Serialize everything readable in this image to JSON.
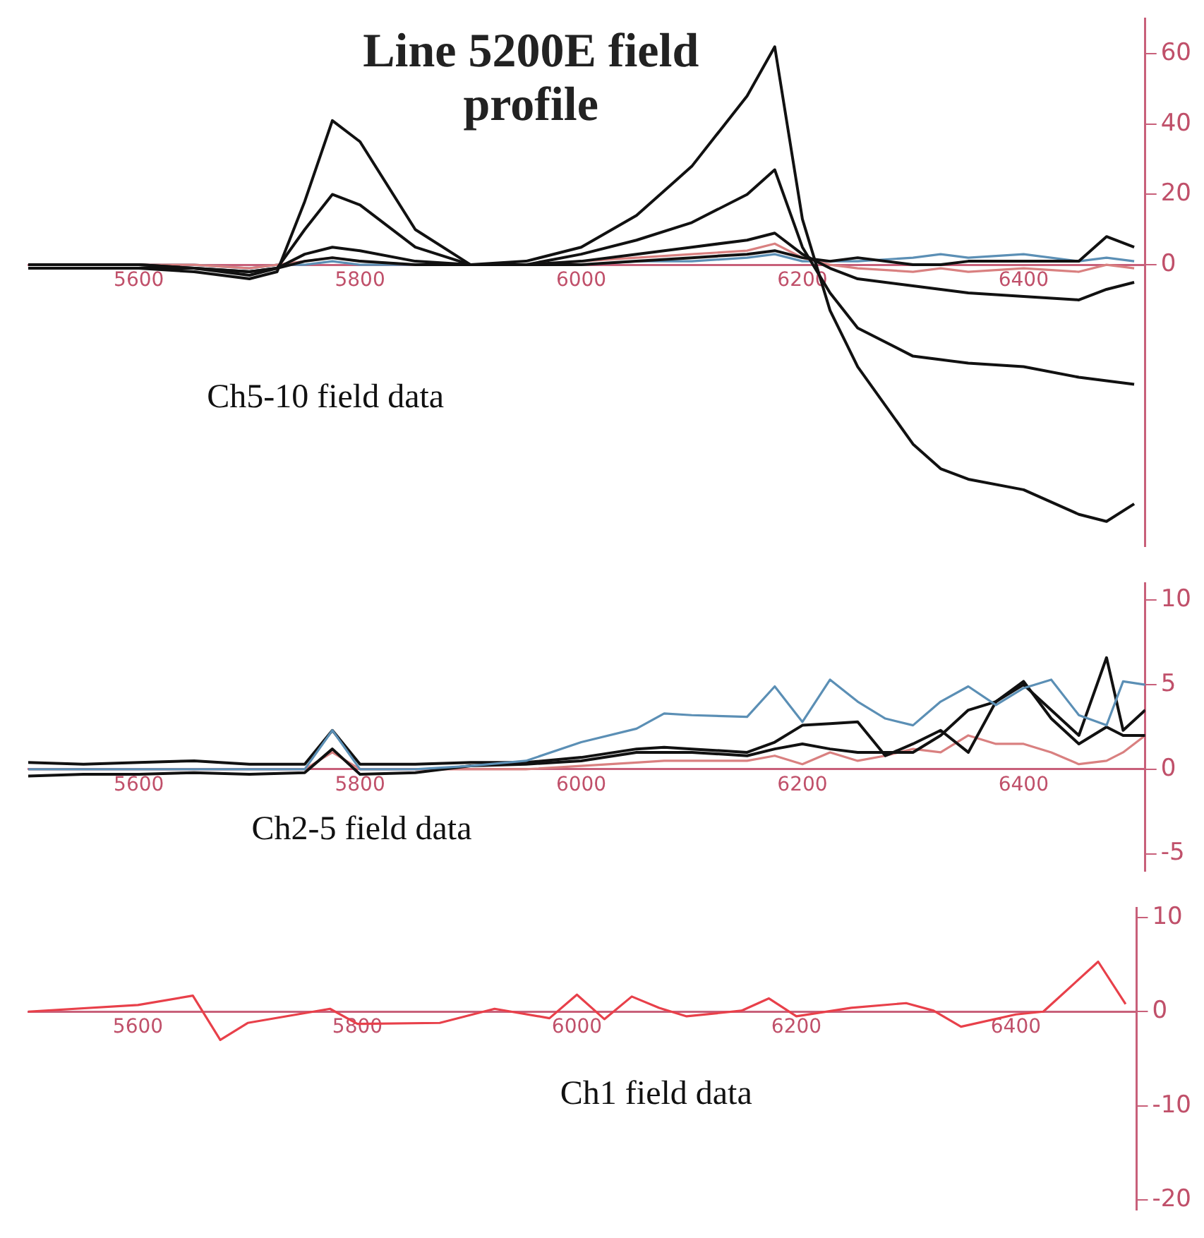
{
  "chart_data": [
    {
      "type": "line",
      "title": "Line 5200E field profile",
      "annotations": [
        "Ch5-10 field data"
      ],
      "grid": false,
      "legend": false,
      "marker": "none",
      "line_style": "solid",
      "x": [
        5500,
        5550,
        5600,
        5650,
        5700,
        5725,
        5750,
        5775,
        5800,
        5850,
        5900,
        5950,
        6000,
        6050,
        6100,
        6150,
        6175,
        6200,
        6225,
        6250,
        6300,
        6325,
        6350,
        6400,
        6450,
        6475,
        6500
      ],
      "xlim": [
        5500,
        6510
      ],
      "xticks": [
        5600,
        5800,
        6000,
        6200,
        6400
      ],
      "ylim": [
        -80,
        70
      ],
      "yticks": [
        0,
        20,
        40,
        60
      ],
      "series": [
        {
          "color": "#111111",
          "values": [
            -1,
            -1,
            -1,
            -2,
            -4,
            -2,
            18,
            41,
            35,
            10,
            0,
            1,
            5,
            14,
            28,
            48,
            62,
            13,
            -13,
            -29,
            -51,
            -58,
            -61,
            -64,
            -71,
            -73,
            -68
          ]
        },
        {
          "color": "#111111",
          "values": [
            -1,
            -1,
            -1,
            -1,
            -3,
            -1,
            10,
            20,
            17,
            5,
            0,
            0,
            3,
            7,
            12,
            20,
            27,
            5,
            -8,
            -18,
            -26,
            -27,
            -28,
            -29,
            -32,
            -33,
            -34
          ]
        },
        {
          "color": "#111111",
          "values": [
            0,
            0,
            0,
            -1,
            -2,
            -1,
            3,
            5,
            4,
            1,
            0,
            0,
            1,
            3,
            5,
            7,
            9,
            3,
            -1,
            -4,
            -6,
            -7,
            -8,
            -9,
            -10,
            -7,
            -5
          ]
        },
        {
          "color": "#111111",
          "values": [
            0,
            0,
            0,
            -1,
            -2,
            -1,
            1,
            2,
            1,
            0,
            0,
            0,
            0,
            1,
            2,
            3,
            4,
            2,
            1,
            2,
            0,
            0,
            1,
            1,
            1,
            8,
            5
          ]
        },
        {
          "color": "#d98080",
          "values": [
            0,
            0,
            0,
            0,
            -1,
            0,
            1,
            2,
            1,
            0,
            0,
            0,
            1,
            2,
            3,
            4,
            6,
            2,
            0,
            -1,
            -2,
            -1,
            -2,
            -1,
            -2,
            0,
            -1
          ]
        },
        {
          "color": "#5b8fb5",
          "values": [
            0,
            0,
            0,
            0,
            -1,
            0,
            0,
            1,
            0,
            0,
            0,
            0,
            0,
            1,
            1,
            2,
            3,
            1,
            1,
            1,
            2,
            3,
            2,
            3,
            1,
            2,
            1
          ]
        }
      ]
    },
    {
      "type": "line",
      "annotations": [
        "Ch2-5 field data"
      ],
      "grid": false,
      "legend": false,
      "marker": "none",
      "line_style": "solid",
      "x": [
        5500,
        5550,
        5600,
        5650,
        5700,
        5750,
        5775,
        5800,
        5850,
        5900,
        5950,
        6000,
        6050,
        6075,
        6100,
        6150,
        6175,
        6200,
        6225,
        6250,
        6275,
        6300,
        6325,
        6350,
        6375,
        6400,
        6425,
        6450,
        6475,
        6490,
        6510
      ],
      "xlim": [
        5500,
        6510
      ],
      "xticks": [
        5600,
        5800,
        6000,
        6200,
        6400
      ],
      "ylim": [
        -6,
        11
      ],
      "yticks": [
        -5,
        0,
        5,
        10
      ],
      "series": [
        {
          "color": "#5b8fb5",
          "values": [
            0,
            0,
            0,
            0,
            0,
            0,
            2.3,
            0,
            0,
            0.2,
            0.5,
            1.6,
            2.4,
            3.3,
            3.2,
            3.1,
            4.9,
            2.8,
            5.3,
            4.0,
            3.0,
            2.6,
            4.0,
            4.9,
            3.8,
            4.8,
            5.3,
            3.2,
            2.6,
            5.2,
            5.0
          ]
        },
        {
          "color": "#111111",
          "values": [
            0.4,
            0.3,
            0.4,
            0.5,
            0.3,
            0.3,
            2.3,
            0.3,
            0.3,
            0.4,
            0.4,
            0.7,
            1.2,
            1.3,
            1.2,
            1.0,
            1.6,
            2.6,
            2.7,
            2.8,
            0.8,
            1.5,
            2.3,
            1.0,
            4.0,
            5.0,
            3.5,
            2.0,
            6.6,
            2.3,
            3.5
          ]
        },
        {
          "color": "#111111",
          "values": [
            -0.4,
            -0.3,
            -0.3,
            -0.2,
            -0.3,
            -0.2,
            1.2,
            -0.3,
            -0.2,
            0.2,
            0.3,
            0.5,
            1.0,
            1.0,
            1.0,
            0.8,
            1.2,
            1.5,
            1.2,
            1.0,
            1.0,
            1.0,
            2.0,
            3.5,
            4.0,
            5.2,
            3.0,
            1.5,
            2.5,
            2.0,
            2.0
          ]
        },
        {
          "color": "#d98080",
          "values": [
            0,
            0,
            0,
            0,
            0,
            0,
            1.0,
            0,
            0,
            0,
            0,
            0.2,
            0.4,
            0.5,
            0.5,
            0.5,
            0.8,
            0.3,
            1.0,
            0.5,
            0.8,
            1.2,
            1.0,
            2.0,
            1.5,
            1.5,
            1.0,
            0.3,
            0.5,
            1.0,
            2.0
          ]
        }
      ]
    },
    {
      "type": "line",
      "annotations": [
        "Ch1 field data"
      ],
      "grid": false,
      "legend": false,
      "marker": "none",
      "line_style": "solid",
      "x": [
        5500,
        5600,
        5650,
        5675,
        5700,
        5775,
        5800,
        5875,
        5925,
        5975,
        6000,
        6025,
        6050,
        6075,
        6100,
        6150,
        6175,
        6200,
        6250,
        6300,
        6325,
        6350,
        6400,
        6425,
        6475,
        6500
      ],
      "xlim": [
        5500,
        6510
      ],
      "xticks": [
        5600,
        5800,
        6000,
        6200,
        6400
      ],
      "ylim": [
        -21,
        11
      ],
      "yticks": [
        -20,
        -10,
        0,
        10
      ],
      "series": [
        {
          "color": "#e8404a",
          "values": [
            0,
            0.7,
            1.7,
            -3.0,
            -1.2,
            0.3,
            -1.3,
            -1.2,
            0.3,
            -0.7,
            1.8,
            -0.8,
            1.6,
            0.4,
            -0.5,
            0.1,
            1.4,
            -0.5,
            0.4,
            0.9,
            0.1,
            -1.6,
            -0.3,
            0,
            5.3,
            0.8
          ]
        }
      ]
    }
  ]
}
